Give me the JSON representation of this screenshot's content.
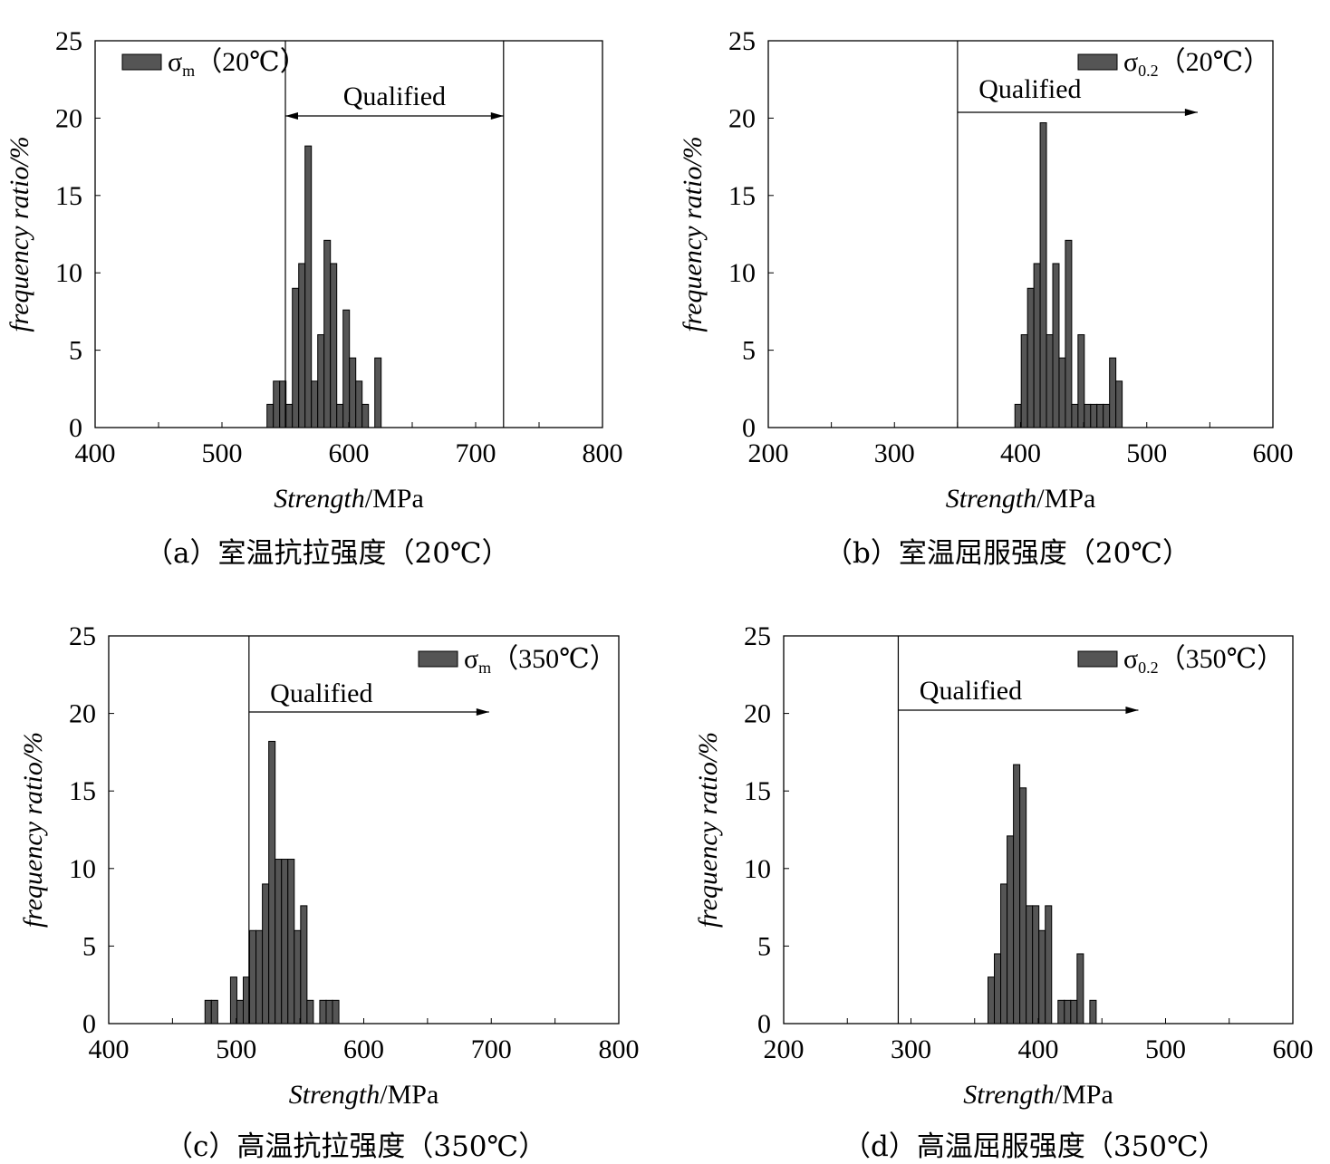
{
  "panels": [
    {
      "id": "a",
      "caption": "（a）室温抗拉强度（20℃）",
      "legend": {
        "symbol": "σ",
        "sub": "m",
        "suffix": "（20℃）",
        "position": "top-left"
      },
      "annotation": "Qualified",
      "qualified_arrow": "double-headed",
      "limits": [
        550,
        722
      ],
      "chart_data": {
        "type": "bar",
        "xlabel_italic": "Strength",
        "xlabel_unit": "/MPa",
        "ylabel": "frequency ratio/%",
        "xlim": [
          400,
          800
        ],
        "ylim": [
          0,
          25
        ],
        "xticks": [
          400,
          500,
          600,
          700,
          800
        ],
        "yticks": [
          0,
          5,
          10,
          15,
          20,
          25
        ],
        "bin_width": 5,
        "bars": [
          [
            538,
            1.5
          ],
          [
            543,
            3
          ],
          [
            548,
            3
          ],
          [
            553,
            1.5
          ],
          [
            558,
            9
          ],
          [
            563,
            10.6
          ],
          [
            568,
            18.2
          ],
          [
            573,
            3
          ],
          [
            578,
            6
          ],
          [
            583,
            12.1
          ],
          [
            588,
            10.6
          ],
          [
            593,
            1.5
          ],
          [
            598,
            7.6
          ],
          [
            603,
            4.5
          ],
          [
            608,
            3
          ],
          [
            613,
            1.5
          ],
          [
            623,
            4.5
          ]
        ]
      }
    },
    {
      "id": "b",
      "caption": "（b）室温屈服强度（20℃）",
      "legend": {
        "symbol": "σ",
        "sub": "0.2",
        "suffix": "（20℃）",
        "position": "top-right"
      },
      "annotation": "Qualified",
      "qualified_arrow": "right",
      "limits": [
        350
      ],
      "chart_data": {
        "type": "bar",
        "xlabel_italic": "Strength",
        "xlabel_unit": "/MPa",
        "ylabel": "frequency ratio/%",
        "xlim": [
          200,
          600
        ],
        "ylim": [
          0,
          25
        ],
        "xticks": [
          200,
          300,
          400,
          500,
          600
        ],
        "yticks": [
          0,
          5,
          10,
          15,
          20,
          25
        ],
        "bin_width": 5,
        "bars": [
          [
            398,
            1.5
          ],
          [
            403,
            6
          ],
          [
            408,
            9
          ],
          [
            413,
            10.6
          ],
          [
            418,
            19.7
          ],
          [
            423,
            6
          ],
          [
            428,
            10.6
          ],
          [
            433,
            4.5
          ],
          [
            438,
            12.1
          ],
          [
            443,
            1.5
          ],
          [
            448,
            6
          ],
          [
            453,
            1.5
          ],
          [
            458,
            1.5
          ],
          [
            463,
            1.5
          ],
          [
            468,
            1.5
          ],
          [
            473,
            4.5
          ],
          [
            478,
            3
          ]
        ]
      }
    },
    {
      "id": "c",
      "caption": "（c）高温抗拉强度（350℃）",
      "legend": {
        "symbol": "σ",
        "sub": "m",
        "suffix": "（350℃）",
        "position": "top-right"
      },
      "annotation": "Qualified",
      "qualified_arrow": "right",
      "limits": [
        510
      ],
      "chart_data": {
        "type": "bar",
        "xlabel_italic": "Strength",
        "xlabel_unit": "/MPa",
        "ylabel": "frequency ratio/%",
        "xlim": [
          400,
          800
        ],
        "ylim": [
          0,
          25
        ],
        "xticks": [
          400,
          500,
          600,
          700,
          800
        ],
        "yticks": [
          0,
          5,
          10,
          15,
          20,
          25
        ],
        "bin_width": 5,
        "bars": [
          [
            478,
            1.5
          ],
          [
            483,
            1.5
          ],
          [
            498,
            3
          ],
          [
            503,
            1.5
          ],
          [
            508,
            3
          ],
          [
            513,
            6
          ],
          [
            518,
            6
          ],
          [
            523,
            9
          ],
          [
            528,
            18.2
          ],
          [
            533,
            10.6
          ],
          [
            538,
            10.6
          ],
          [
            543,
            10.6
          ],
          [
            548,
            6
          ],
          [
            553,
            7.6
          ],
          [
            558,
            1.5
          ],
          [
            568,
            1.5
          ],
          [
            573,
            1.5
          ],
          [
            578,
            1.5
          ]
        ]
      }
    },
    {
      "id": "d",
      "caption": "（d）高温屈服强度（350℃）",
      "legend": {
        "symbol": "σ",
        "sub": "0.2",
        "suffix": "（350℃）",
        "position": "top-right"
      },
      "annotation": "Qualified",
      "qualified_arrow": "right",
      "limits": [
        290
      ],
      "chart_data": {
        "type": "bar",
        "xlabel_italic": "Strength",
        "xlabel_unit": "/MPa",
        "ylabel": "frequency ratio/%",
        "xlim": [
          200,
          600
        ],
        "ylim": [
          0,
          25
        ],
        "xticks": [
          200,
          300,
          400,
          500,
          600
        ],
        "yticks": [
          0,
          5,
          10,
          15,
          20,
          25
        ],
        "bin_width": 5,
        "bars": [
          [
            363,
            3
          ],
          [
            368,
            4.5
          ],
          [
            373,
            9
          ],
          [
            378,
            12.1
          ],
          [
            383,
            16.7
          ],
          [
            388,
            15.2
          ],
          [
            393,
            7.6
          ],
          [
            398,
            7.6
          ],
          [
            403,
            6
          ],
          [
            408,
            7.6
          ],
          [
            418,
            1.5
          ],
          [
            423,
            1.5
          ],
          [
            428,
            1.5
          ],
          [
            433,
            4.5
          ],
          [
            443,
            1.5
          ]
        ]
      }
    }
  ],
  "colors": {
    "bar_fill": "#555555",
    "bar_stroke": "#000000",
    "axis": "#000000"
  }
}
